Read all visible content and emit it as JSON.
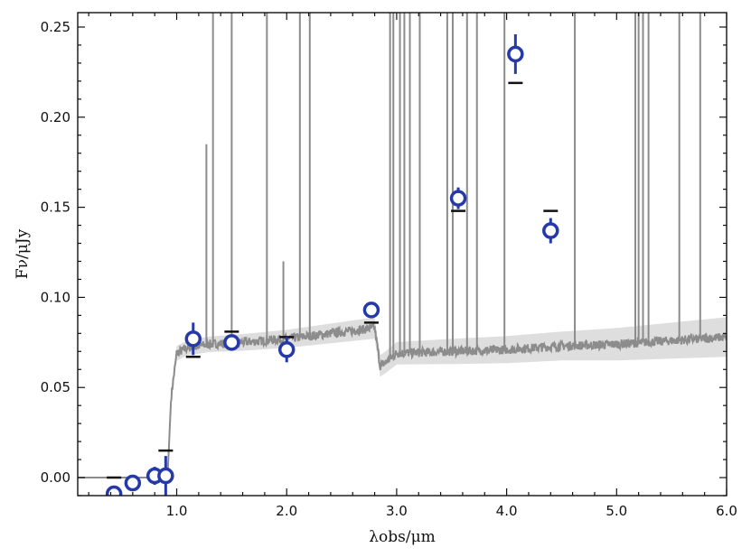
{
  "chart_data": {
    "type": "scatter",
    "title": "",
    "xlabel": "λobs/μm",
    "ylabel": "Fν/μJy",
    "xlim": [
      0.1,
      6.0
    ],
    "ylim": [
      -0.01,
      0.258
    ],
    "xticks": [
      1.0,
      2.0,
      3.0,
      4.0,
      5.0,
      6.0
    ],
    "xtick_labels": [
      "1.0",
      "2.0",
      "3.0",
      "4.0",
      "5.0",
      "6.0"
    ],
    "yticks": [
      0.0,
      0.05,
      0.1,
      0.15,
      0.2,
      0.25
    ],
    "ytick_labels": [
      "0.00",
      "0.05",
      "0.10",
      "0.15",
      "0.20",
      "0.25"
    ],
    "grid": false,
    "colors": {
      "points": "#2539a8",
      "point_fill": "#ffffff",
      "model_spectrum": "#8c8c8c",
      "model_band": "#dedede",
      "model_flux_bars": "#111111"
    },
    "series": [
      {
        "kind": "photometry",
        "x": [
          0.43,
          0.6,
          0.8,
          0.9,
          1.15,
          1.5,
          2.0,
          2.77,
          3.56,
          4.08,
          4.4
        ],
        "y": [
          -0.009,
          -0.003,
          0.001,
          0.001,
          0.077,
          0.075,
          0.071,
          0.093,
          0.155,
          0.235,
          0.137
        ],
        "yerr": [
          0.003,
          0.003,
          0.005,
          0.011,
          0.009,
          0.003,
          0.007,
          0.003,
          0.006,
          0.011,
          0.007
        ]
      },
      {
        "kind": "model_photometry",
        "x": [
          0.43,
          0.9,
          1.15,
          1.5,
          2.0,
          2.77,
          3.56,
          4.08,
          4.4
        ],
        "y": [
          0.0,
          0.015,
          0.067,
          0.081,
          0.078,
          0.086,
          0.148,
          0.219,
          0.148
        ]
      },
      {
        "kind": "model_spectrum",
        "continuum": [
          [
            0.1,
            0.0
          ],
          [
            0.88,
            0.0
          ],
          [
            0.92,
            0.005
          ],
          [
            0.95,
            0.045
          ],
          [
            1.0,
            0.069
          ],
          [
            1.1,
            0.072
          ],
          [
            1.3,
            0.074
          ],
          [
            1.6,
            0.075
          ],
          [
            2.0,
            0.077
          ],
          [
            2.4,
            0.08
          ],
          [
            2.8,
            0.083
          ],
          [
            2.85,
            0.062
          ],
          [
            2.9,
            0.064
          ],
          [
            3.0,
            0.069
          ],
          [
            3.5,
            0.07
          ],
          [
            4.0,
            0.071
          ],
          [
            4.5,
            0.073
          ],
          [
            5.0,
            0.074
          ],
          [
            5.5,
            0.076
          ],
          [
            6.0,
            0.078
          ]
        ],
        "band_halfwidth": [
          [
            0.95,
            0.004
          ],
          [
            2.0,
            0.005
          ],
          [
            2.85,
            0.006
          ],
          [
            3.5,
            0.007
          ],
          [
            4.5,
            0.008
          ],
          [
            6.0,
            0.011
          ]
        ],
        "emission_lines": [
          [
            1.27,
            0.185
          ],
          [
            1.33,
            0.258
          ],
          [
            1.5,
            0.258
          ],
          [
            1.82,
            0.258
          ],
          [
            1.97,
            0.12
          ],
          [
            2.12,
            0.258
          ],
          [
            2.21,
            0.258
          ],
          [
            2.94,
            0.258
          ],
          [
            2.97,
            0.258
          ],
          [
            3.03,
            0.258
          ],
          [
            3.07,
            0.258
          ],
          [
            3.12,
            0.258
          ],
          [
            3.21,
            0.258
          ],
          [
            3.46,
            0.258
          ],
          [
            3.51,
            0.258
          ],
          [
            3.64,
            0.258
          ],
          [
            3.73,
            0.258
          ],
          [
            3.98,
            0.258
          ],
          [
            4.62,
            0.258
          ],
          [
            5.17,
            0.258
          ],
          [
            5.2,
            0.258
          ],
          [
            5.24,
            0.258
          ],
          [
            5.29,
            0.258
          ],
          [
            5.57,
            0.258
          ],
          [
            5.76,
            0.258
          ]
        ]
      }
    ]
  }
}
